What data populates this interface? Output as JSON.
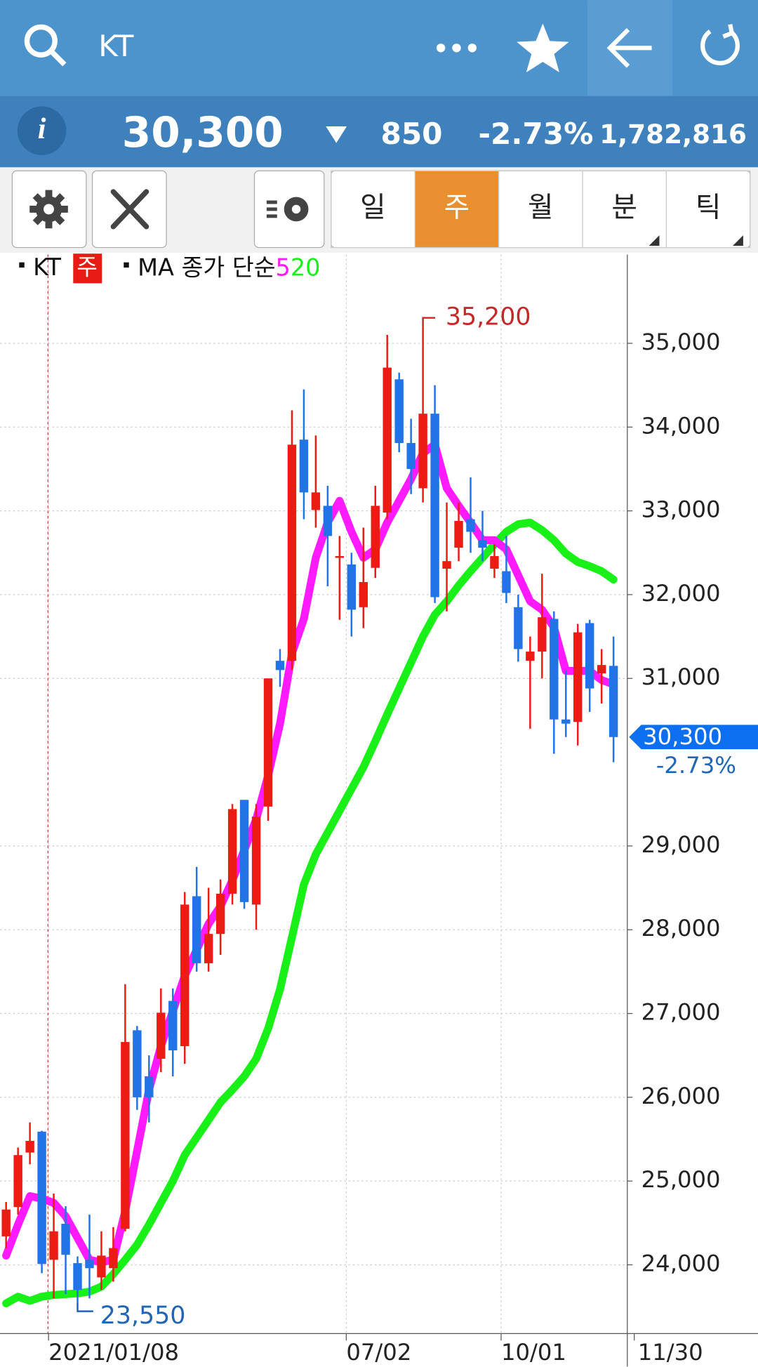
{
  "header": {
    "symbol": "KT"
  },
  "quote": {
    "price": "30,300",
    "change": "850",
    "change_pct": "-2.73%",
    "volume": "1,782,816"
  },
  "tabs": {
    "items": [
      "일",
      "주",
      "월",
      "분",
      "틱"
    ],
    "active": 1
  },
  "chart_data": {
    "type": "candlestick",
    "series_label": "KT",
    "period_badge": "주",
    "ma_label": "MA 종가 단순",
    "up_color": "#ec1b14",
    "down_color": "#2173e6",
    "categories": [
      null,
      null,
      null,
      null,
      "2021/01/08",
      null,
      null,
      null,
      null,
      null,
      null,
      null,
      null,
      null,
      null,
      null,
      null,
      null,
      null,
      null,
      null,
      null,
      null,
      null,
      null,
      null,
      null,
      null,
      null,
      "07/02",
      null,
      null,
      null,
      null,
      null,
      null,
      null,
      null,
      null,
      null,
      null,
      null,
      "10/01",
      null,
      null,
      null,
      null,
      null,
      null,
      null,
      null,
      null
    ],
    "x_end_label": "11/30",
    "open": [
      24340,
      24690,
      25340,
      25590,
      24060,
      24490,
      24020,
      24060,
      23850,
      23960,
      24430,
      26800,
      26250,
      26460,
      27150,
      26610,
      28400,
      27600,
      27950,
      28430,
      29550,
      28300,
      29470,
      31210,
      31210,
      33850,
      33010,
      33060,
      32440,
      32360,
      31850,
      32320,
      32980,
      34570,
      33810,
      33270,
      34160,
      32310,
      32560,
      32900,
      32650,
      32310,
      32280,
      31850,
      31210,
      31320,
      31710,
      30510,
      30480,
      31660,
      31060,
      31150
    ],
    "high": [
      24750,
      25400,
      25700,
      25600,
      24850,
      24700,
      24100,
      24600,
      24400,
      24450,
      27350,
      26850,
      26500,
      27300,
      27300,
      28450,
      28750,
      28500,
      28600,
      29500,
      29550,
      29500,
      31000,
      31350,
      34200,
      34450,
      33900,
      33300,
      32700,
      32500,
      32800,
      33300,
      35100,
      34650,
      34100,
      35200,
      34500,
      33100,
      33100,
      33400,
      33000,
      32600,
      32700,
      32000,
      31500,
      32250,
      31800,
      31100,
      31650,
      31700,
      31350,
      31500
    ],
    "low": [
      24200,
      24600,
      25200,
      23900,
      23600,
      23650,
      23550,
      23600,
      23700,
      23800,
      24400,
      25850,
      25700,
      26300,
      26250,
      26400,
      27500,
      27500,
      27700,
      28300,
      28250,
      28000,
      29300,
      30900,
      31100,
      32900,
      32800,
      32100,
      31700,
      31500,
      31600,
      32200,
      32900,
      33700,
      33200,
      33100,
      31900,
      31800,
      32400,
      32500,
      32400,
      32200,
      31900,
      31200,
      30400,
      31000,
      30100,
      30300,
      30200,
      30600,
      30700,
      30000
    ],
    "close": [
      24660,
      25310,
      25480,
      24010,
      24400,
      24120,
      23700,
      23960,
      24110,
      24200,
      26660,
      26000,
      26000,
      27010,
      26560,
      28300,
      27600,
      27950,
      28430,
      29440,
      28330,
      29350,
      31000,
      31100,
      33790,
      33220,
      33220,
      32700,
      32460,
      31820,
      32150,
      33060,
      34710,
      33810,
      33500,
      34160,
      31970,
      32400,
      32880,
      32750,
      32560,
      32460,
      32020,
      31350,
      31320,
      31730,
      30510,
      30460,
      31550,
      30880,
      31160,
      30300
    ],
    "series": [
      {
        "name": "5",
        "color": "#ff1aff",
        "values": [
          24110,
          24480,
          24820,
          24790,
          24740,
          24580,
          24320,
          24060,
          24030,
          24060,
          24640,
          25360,
          26090,
          26610,
          27030,
          27450,
          27760,
          28070,
          28280,
          28590,
          28950,
          29320,
          29840,
          30460,
          31300,
          31710,
          32440,
          32860,
          33120,
          32750,
          32440,
          32540,
          32860,
          33120,
          33380,
          33690,
          33790,
          33270,
          33060,
          32860,
          32650,
          32650,
          32540,
          32230,
          31920,
          31820,
          31610,
          31090,
          31090,
          31090,
          30980,
          30930
        ]
      },
      {
        "name": "20",
        "color": "#18f018",
        "values": [
          23540,
          23620,
          23570,
          23620,
          23640,
          23650,
          23660,
          23680,
          23740,
          23890,
          24060,
          24240,
          24480,
          24740,
          25000,
          25310,
          25520,
          25730,
          25940,
          26090,
          26250,
          26460,
          26820,
          27290,
          27910,
          28540,
          28900,
          29160,
          29420,
          29680,
          29940,
          30250,
          30570,
          30880,
          31190,
          31500,
          31760,
          31920,
          32110,
          32280,
          32440,
          32600,
          32750,
          32840,
          32860,
          32770,
          32650,
          32490,
          32390,
          32340,
          32280,
          32180
        ]
      }
    ],
    "ylim": [
      23180,
      36060
    ],
    "yticks": [
      {
        "value": 24000,
        "label": "24,000"
      },
      {
        "value": 25000,
        "label": "25,000"
      },
      {
        "value": 26000,
        "label": "26,000"
      },
      {
        "value": 27000,
        "label": "27,000"
      },
      {
        "value": 28000,
        "label": "28,000"
      },
      {
        "value": 29000,
        "label": "29,000"
      },
      {
        "value": 31000,
        "label": "31,000"
      },
      {
        "value": 32000,
        "label": "32,000"
      },
      {
        "value": 33000,
        "label": "33,000"
      },
      {
        "value": 34000,
        "label": "34,000"
      },
      {
        "value": 35000,
        "label": "35,000"
      }
    ],
    "grid": true,
    "high_label": {
      "value": 35200,
      "label": "35,200"
    },
    "low_label": {
      "value": 23550,
      "label": "23,550"
    },
    "last_label": {
      "value": 30300,
      "label": "30,300"
    },
    "last_change": "-2.73%"
  }
}
